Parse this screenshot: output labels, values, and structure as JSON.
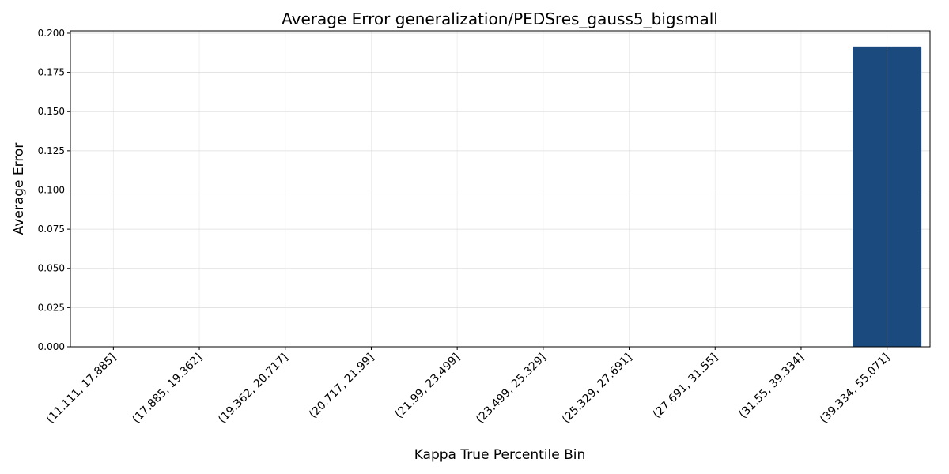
{
  "chart_data": {
    "type": "bar",
    "title": "Average Error generalization/PEDSres_gauss5_bigsmall",
    "xlabel": "Kappa True Percentile Bin",
    "ylabel": "Average Error",
    "categories": [
      "(11.111, 17.885]",
      "(17.885, 19.362]",
      "(19.362, 20.717]",
      "(20.717, 21.99]",
      "(21.99, 23.499]",
      "(23.499, 25.329]",
      "(25.329, 27.691]",
      "(27.691, 31.55]",
      "(31.55, 39.334]",
      "(39.334, 55.071]"
    ],
    "values": [
      0,
      0,
      0,
      0,
      0,
      0,
      0,
      0,
      0,
      0.1915
    ],
    "ylim": [
      0,
      0.2015
    ],
    "yticks": [
      "0.000",
      "0.025",
      "0.050",
      "0.075",
      "0.100",
      "0.125",
      "0.150",
      "0.175",
      "0.200"
    ],
    "grid": true,
    "bar_color": "#1b4a7f",
    "grid_color": "#dcdcdc"
  }
}
